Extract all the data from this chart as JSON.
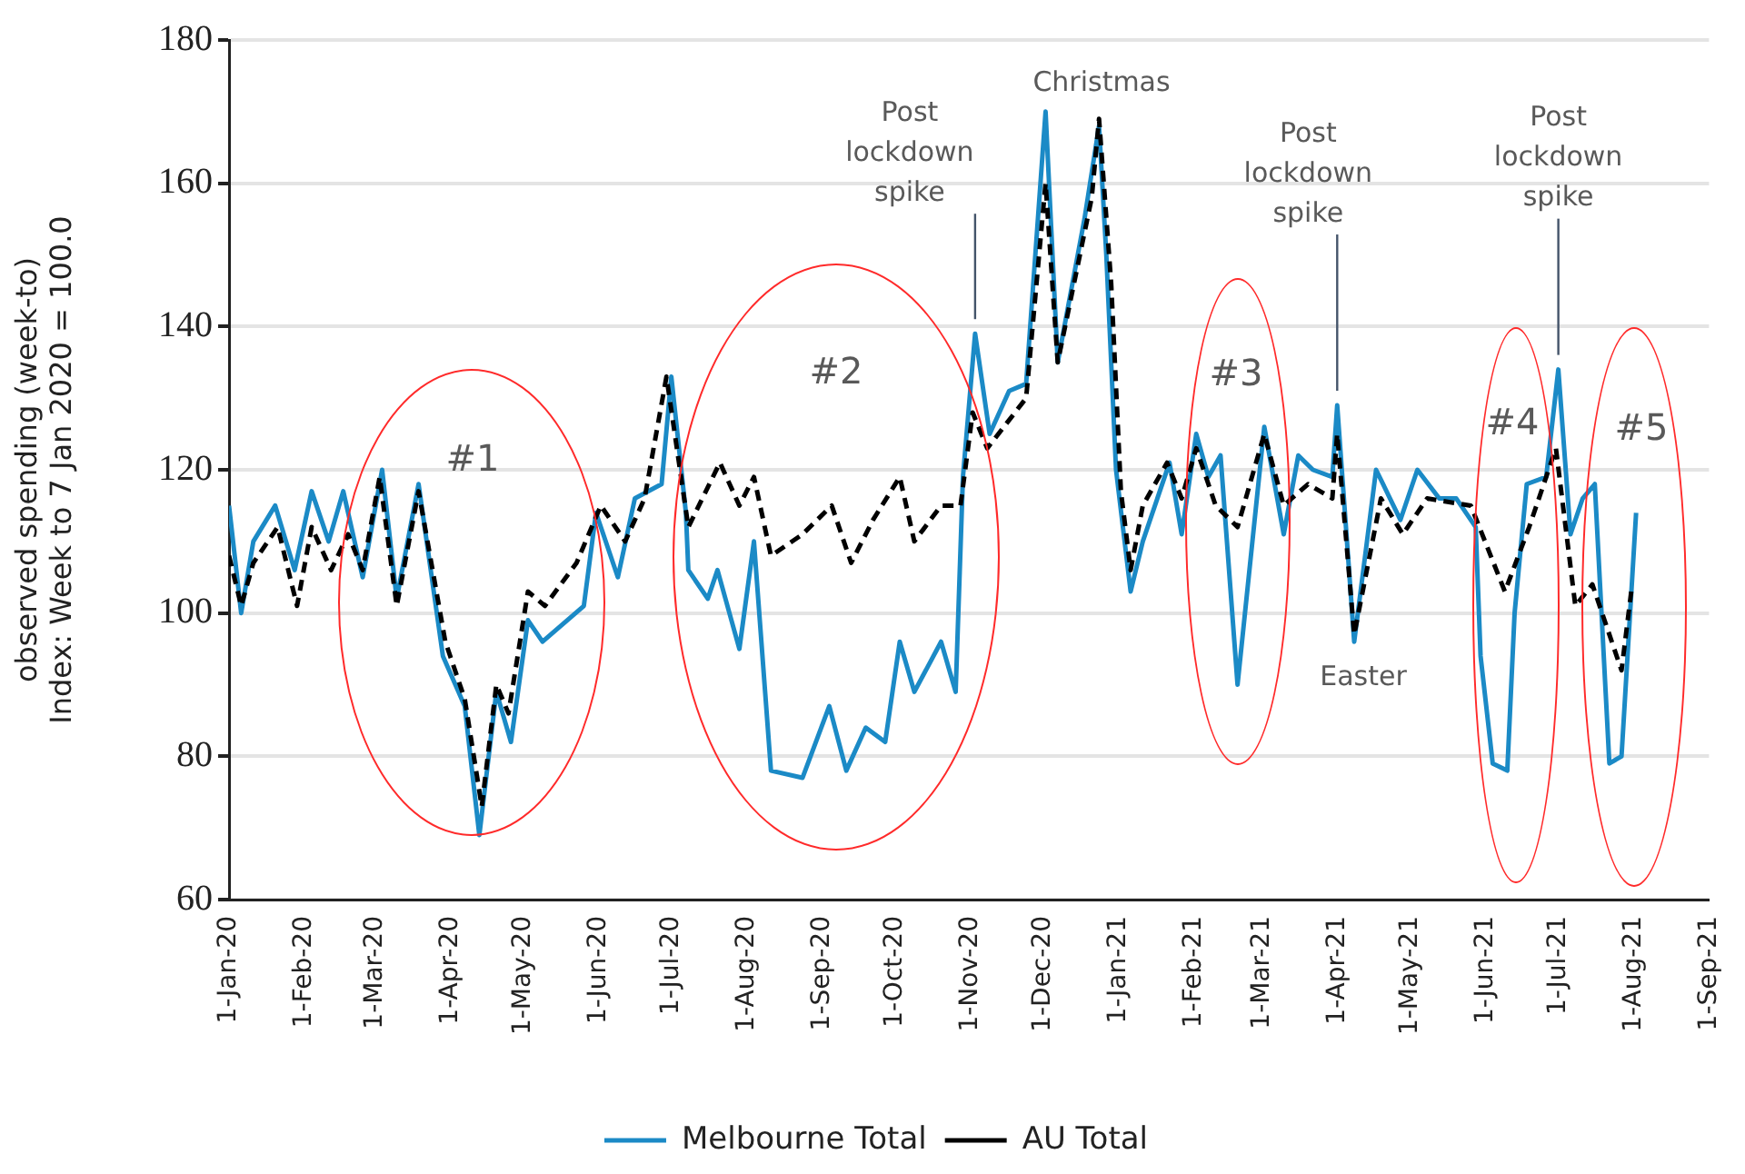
{
  "chart_data": {
    "type": "line",
    "ylabel": "observed spending (week-to)\nIndex: Week to 7 Jan 2020 = 100.0",
    "xlim": [
      "2020-01-01",
      "2021-09-01"
    ],
    "xticks": [
      {
        "value": "2020-01-01",
        "label": "1-Jan-20"
      },
      {
        "value": "2020-02-01",
        "label": "1-Feb-20"
      },
      {
        "value": "2020-03-01",
        "label": "1-Mar-20"
      },
      {
        "value": "2020-04-01",
        "label": "1-Apr-20"
      },
      {
        "value": "2020-05-01",
        "label": "1-May-20"
      },
      {
        "value": "2020-06-01",
        "label": "1-Jun-20"
      },
      {
        "value": "2020-07-01",
        "label": "1-Jul-20"
      },
      {
        "value": "2020-08-01",
        "label": "1-Aug-20"
      },
      {
        "value": "2020-09-01",
        "label": "1-Sep-20"
      },
      {
        "value": "2020-10-01",
        "label": "1-Oct-20"
      },
      {
        "value": "2020-11-01",
        "label": "1-Nov-20"
      },
      {
        "value": "2020-12-01",
        "label": "1-Dec-20"
      },
      {
        "value": "2021-01-01",
        "label": "1-Jan-21"
      },
      {
        "value": "2021-02-01",
        "label": "1-Feb-21"
      },
      {
        "value": "2021-03-01",
        "label": "1-Mar-21"
      },
      {
        "value": "2021-04-01",
        "label": "1-Apr-21"
      },
      {
        "value": "2021-05-01",
        "label": "1-May-21"
      },
      {
        "value": "2021-06-01",
        "label": "1-Jun-21"
      },
      {
        "value": "2021-07-01",
        "label": "1-Jul-21"
      },
      {
        "value": "2021-08-01",
        "label": "1-Aug-21"
      },
      {
        "value": "2021-09-01",
        "label": "1-Sep-21"
      }
    ],
    "ylim": [
      60,
      180
    ],
    "yticks": [
      60,
      80,
      100,
      120,
      140,
      160,
      180
    ],
    "grid": "y",
    "legend": "bottom",
    "marker": "none",
    "series": [
      {
        "name": "Melbourne Total",
        "color": "#1b8ac6",
        "line_style": "solid",
        "x": [
          "2020-01-01",
          "2020-01-06",
          "2020-01-11",
          "2020-01-20",
          "2020-01-28",
          "2020-02-04",
          "2020-02-11",
          "2020-02-17",
          "2020-02-25",
          "2020-03-04",
          "2020-03-10",
          "2020-03-19",
          "2020-03-29",
          "2020-04-07",
          "2020-04-13",
          "2020-04-20",
          "2020-04-26",
          "2020-05-03",
          "2020-05-09",
          "2020-05-26",
          "2020-05-31",
          "2020-06-09",
          "2020-06-16",
          "2020-06-27",
          "2020-07-01",
          "2020-07-07",
          "2020-07-08",
          "2020-07-16",
          "2020-07-20",
          "2020-07-29",
          "2020-08-04",
          "2020-08-11",
          "2020-08-24",
          "2020-09-04",
          "2020-09-11",
          "2020-09-19",
          "2020-09-27",
          "2020-10-03",
          "2020-10-09",
          "2020-10-20",
          "2020-10-26",
          "2020-10-29",
          "2020-11-03",
          "2020-11-09",
          "2020-11-17",
          "2020-11-24",
          "2020-12-02",
          "2020-12-07",
          "2020-12-18",
          "2020-12-24",
          "2020-12-27",
          "2020-12-31",
          "2021-01-06",
          "2021-01-11",
          "2021-01-22",
          "2021-01-27",
          "2021-02-02",
          "2021-02-07",
          "2021-02-12",
          "2021-02-19",
          "2021-03-02",
          "2021-03-10",
          "2021-03-16",
          "2021-03-22",
          "2021-03-30",
          "2021-04-01",
          "2021-04-08",
          "2021-04-17",
          "2021-04-27",
          "2021-05-04",
          "2021-05-13",
          "2021-05-20",
          "2021-05-28",
          "2021-05-30",
          "2021-06-04",
          "2021-06-10",
          "2021-06-13",
          "2021-06-18",
          "2021-06-26",
          "2021-07-01",
          "2021-07-06",
          "2021-07-11",
          "2021-07-16",
          "2021-07-22",
          "2021-07-27",
          "2021-08-02"
        ],
        "values": [
          115,
          100,
          110,
          115,
          106,
          117,
          110,
          117,
          105,
          120,
          102,
          118,
          94,
          87,
          69,
          89,
          82,
          99,
          96,
          101,
          114,
          105,
          116,
          118,
          133,
          114,
          106,
          102,
          106,
          95,
          110,
          78,
          77,
          87,
          78,
          84,
          82,
          96,
          89,
          96,
          89,
          119,
          139,
          125,
          131,
          132,
          170,
          135,
          155,
          168,
          150,
          120,
          103,
          110,
          121,
          111,
          125,
          119,
          122,
          90,
          126,
          111,
          122,
          120,
          119,
          129,
          96,
          120,
          113,
          120,
          116,
          116,
          112,
          94,
          79,
          78,
          100,
          118,
          119,
          134,
          111,
          116,
          118,
          79,
          80,
          114
        ]
      },
      {
        "name": "AU Total",
        "color": "#000000",
        "line_style": "dashed",
        "x": [
          "2020-01-01",
          "2020-01-06",
          "2020-01-11",
          "2020-01-21",
          "2020-01-29",
          "2020-02-04",
          "2020-02-12",
          "2020-02-19",
          "2020-02-25",
          "2020-03-03",
          "2020-03-10",
          "2020-03-19",
          "2020-03-30",
          "2020-04-07",
          "2020-04-14",
          "2020-04-20",
          "2020-04-25",
          "2020-05-03",
          "2020-05-10",
          "2020-05-23",
          "2020-06-02",
          "2020-06-12",
          "2020-06-20",
          "2020-06-29",
          "2020-07-08",
          "2020-07-21",
          "2020-07-29",
          "2020-08-04",
          "2020-08-11",
          "2020-08-24",
          "2020-09-05",
          "2020-09-13",
          "2020-09-22",
          "2020-10-03",
          "2020-10-09",
          "2020-10-20",
          "2020-10-28",
          "2020-11-02",
          "2020-11-08",
          "2020-11-24",
          "2020-12-02",
          "2020-12-07",
          "2020-12-21",
          "2020-12-24",
          "2020-12-29",
          "2021-01-02",
          "2021-01-06",
          "2021-01-11",
          "2021-01-21",
          "2021-01-27",
          "2021-02-02",
          "2021-02-10",
          "2021-02-19",
          "2021-03-02",
          "2021-03-10",
          "2021-03-20",
          "2021-03-30",
          "2021-04-01",
          "2021-04-08",
          "2021-04-19",
          "2021-04-28",
          "2021-05-08",
          "2021-05-26",
          "2021-06-09",
          "2021-06-19",
          "2021-06-30",
          "2021-07-08",
          "2021-07-15",
          "2021-07-27",
          "2021-07-31"
        ],
        "values": [
          108,
          101,
          107,
          112,
          101,
          112,
          106,
          111,
          106,
          119,
          101,
          117,
          96,
          88,
          73,
          90,
          86,
          103,
          101,
          107,
          115,
          110,
          116,
          133,
          112,
          121,
          115,
          119,
          108,
          111,
          115,
          107,
          113,
          119,
          110,
          115,
          115,
          128,
          123,
          130,
          160,
          135,
          158,
          169,
          146,
          117,
          106,
          115,
          121,
          116,
          123,
          115,
          112,
          125,
          115,
          118,
          116,
          125,
          97,
          116,
          111,
          116,
          115,
          103,
          112,
          123,
          101,
          104,
          92,
          103
        ]
      }
    ],
    "annotations": [
      "#1",
      "#2",
      "#3",
      "#4",
      "#5",
      {
        "text": "Post lockdown spike",
        "x": "2020-11-03",
        "y": 139
      },
      {
        "text": "Post lockdown spike",
        "x": "2021-04-01",
        "y": 129
      },
      {
        "text": "Post lockdown spike",
        "x": "2021-07-01",
        "y": 134
      },
      "Christmas",
      "Easter"
    ]
  }
}
